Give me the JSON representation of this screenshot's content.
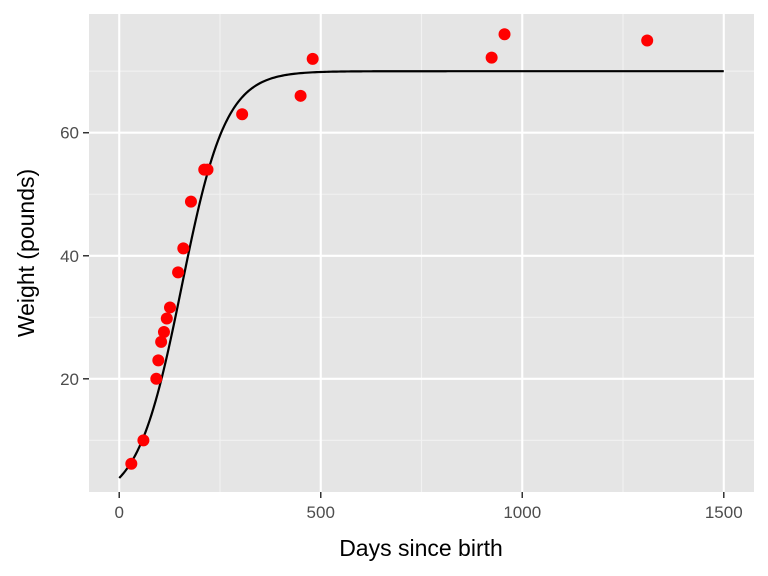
{
  "chart_data": {
    "type": "scatter",
    "xlabel": "Days since birth",
    "ylabel": "Weight (pounds)",
    "xlim": [
      -75,
      1575
    ],
    "ylim": [
      1.6,
      79.3
    ],
    "x_ticks": [
      0,
      500,
      1000,
      1500
    ],
    "x_tick_labels": [
      "0",
      "500",
      "1000",
      "1500"
    ],
    "y_ticks": [
      20,
      40,
      60
    ],
    "y_tick_labels": [
      "20",
      "40",
      "60"
    ],
    "grid": true,
    "legend": "none",
    "points": [
      {
        "x": 30,
        "y": 6.2
      },
      {
        "x": 60,
        "y": 10.0
      },
      {
        "x": 92,
        "y": 20.0
      },
      {
        "x": 97,
        "y": 23.0
      },
      {
        "x": 104,
        "y": 26.0
      },
      {
        "x": 111,
        "y": 27.6
      },
      {
        "x": 118,
        "y": 29.8
      },
      {
        "x": 126,
        "y": 31.6
      },
      {
        "x": 146,
        "y": 37.3
      },
      {
        "x": 159,
        "y": 41.2
      },
      {
        "x": 178,
        "y": 48.8
      },
      {
        "x": 211,
        "y": 54.0
      },
      {
        "x": 219,
        "y": 54.0
      },
      {
        "x": 305,
        "y": 63.0
      },
      {
        "x": 450,
        "y": 66.0
      },
      {
        "x": 480,
        "y": 72.0
      },
      {
        "x": 924,
        "y": 72.2
      },
      {
        "x": 956,
        "y": 76.0
      },
      {
        "x": 1310,
        "y": 75.0
      }
    ],
    "fit_curve": {
      "type": "logistic",
      "asymptote": 70,
      "midpoint": 155,
      "rate": 0.0183,
      "x_range": [
        0,
        1500
      ]
    },
    "colors": {
      "points": "#ff0000",
      "curve": "#000000",
      "panel_background": "#e5e5e5",
      "grid_major": "#ffffff",
      "grid_minor": "#f2f2f2"
    }
  }
}
